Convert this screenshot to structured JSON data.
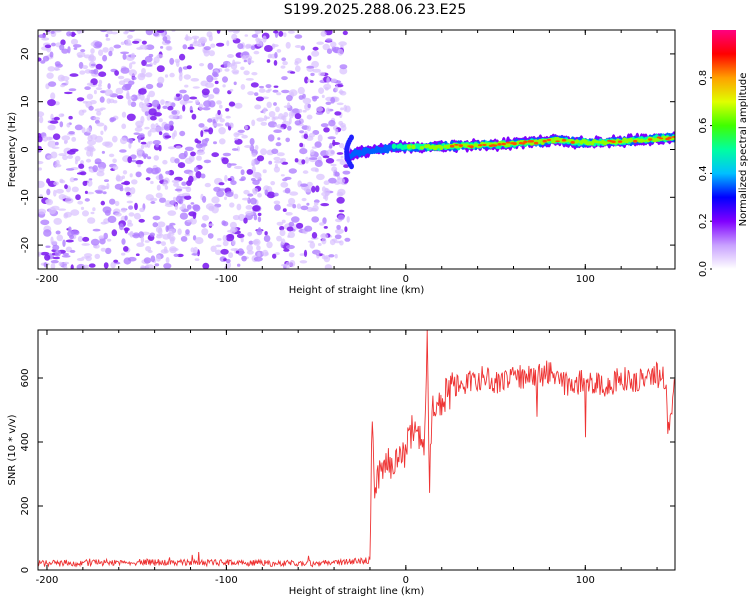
{
  "title": "S199.2025.288.06.23.E25",
  "chart_data": [
    {
      "type": "heatmap",
      "title": "S199.2025.288.06.23.E25",
      "xlabel": "Height of straight line (km)",
      "ylabel": "Frequency (Hz)",
      "xlim": [
        -205,
        150
      ],
      "ylim": [
        -25,
        25
      ],
      "xticks": [
        -200,
        -100,
        0,
        100
      ],
      "yticks": [
        -20,
        -10,
        0,
        10,
        20
      ],
      "noise_region_x": [
        -205,
        -32
      ],
      "signal_track": {
        "x": [
          -33,
          -25,
          -15,
          -5,
          5,
          15,
          30,
          50,
          70,
          85,
          95,
          110,
          130,
          150
        ],
        "y": [
          -1.5,
          -0.5,
          0,
          0.5,
          0.5,
          0.5,
          0.8,
          1.0,
          1.5,
          2.0,
          1.5,
          1.5,
          2.0,
          2.5
        ],
        "peak_amplitude": [
          0.3,
          0.4,
          0.4,
          0.5,
          0.6,
          0.7,
          0.9,
          0.85,
          0.9,
          0.85,
          0.7,
          0.8,
          0.75,
          0.8
        ]
      },
      "colorbar": {
        "label": "Normalized spectral amplitude",
        "ticks": [
          "0.0",
          "0.2",
          "0.4",
          "0.6",
          "0.8"
        ],
        "range": [
          0,
          1
        ],
        "colors": [
          "#ffffff",
          "#c8a0ff",
          "#8000ff",
          "#0000ff",
          "#00c0ff",
          "#00ffa0",
          "#40ff00",
          "#e0ff00",
          "#ffa000",
          "#ff0000",
          "#ff0080"
        ]
      }
    },
    {
      "type": "line",
      "xlabel": "Height of straight line (km)",
      "ylabel": "SNR (10 * v/v)",
      "xlim": [
        -205,
        150
      ],
      "ylim": [
        0,
        750
      ],
      "xticks": [
        -200,
        -100,
        0,
        100
      ],
      "yticks": [
        0,
        200,
        400,
        600
      ],
      "color": "#ee3333",
      "series": [
        {
          "name": "SNR",
          "x": [
            -205,
            -150,
            -100,
            -50,
            -35,
            -20,
            -19,
            -17,
            -15,
            -10,
            -5,
            0,
            5,
            10,
            12,
            13,
            15,
            20,
            30,
            40,
            50,
            60,
            70,
            80,
            90,
            100,
            110,
            120,
            130,
            140,
            145,
            146,
            150
          ],
          "values": [
            20,
            25,
            22,
            20,
            25,
            30,
            490,
            230,
            300,
            340,
            350,
            380,
            450,
            370,
            750,
            240,
            520,
            540,
            580,
            600,
            590,
            610,
            600,
            620,
            580,
            590,
            570,
            600,
            590,
            610,
            600,
            420,
            610
          ]
        }
      ]
    }
  ]
}
